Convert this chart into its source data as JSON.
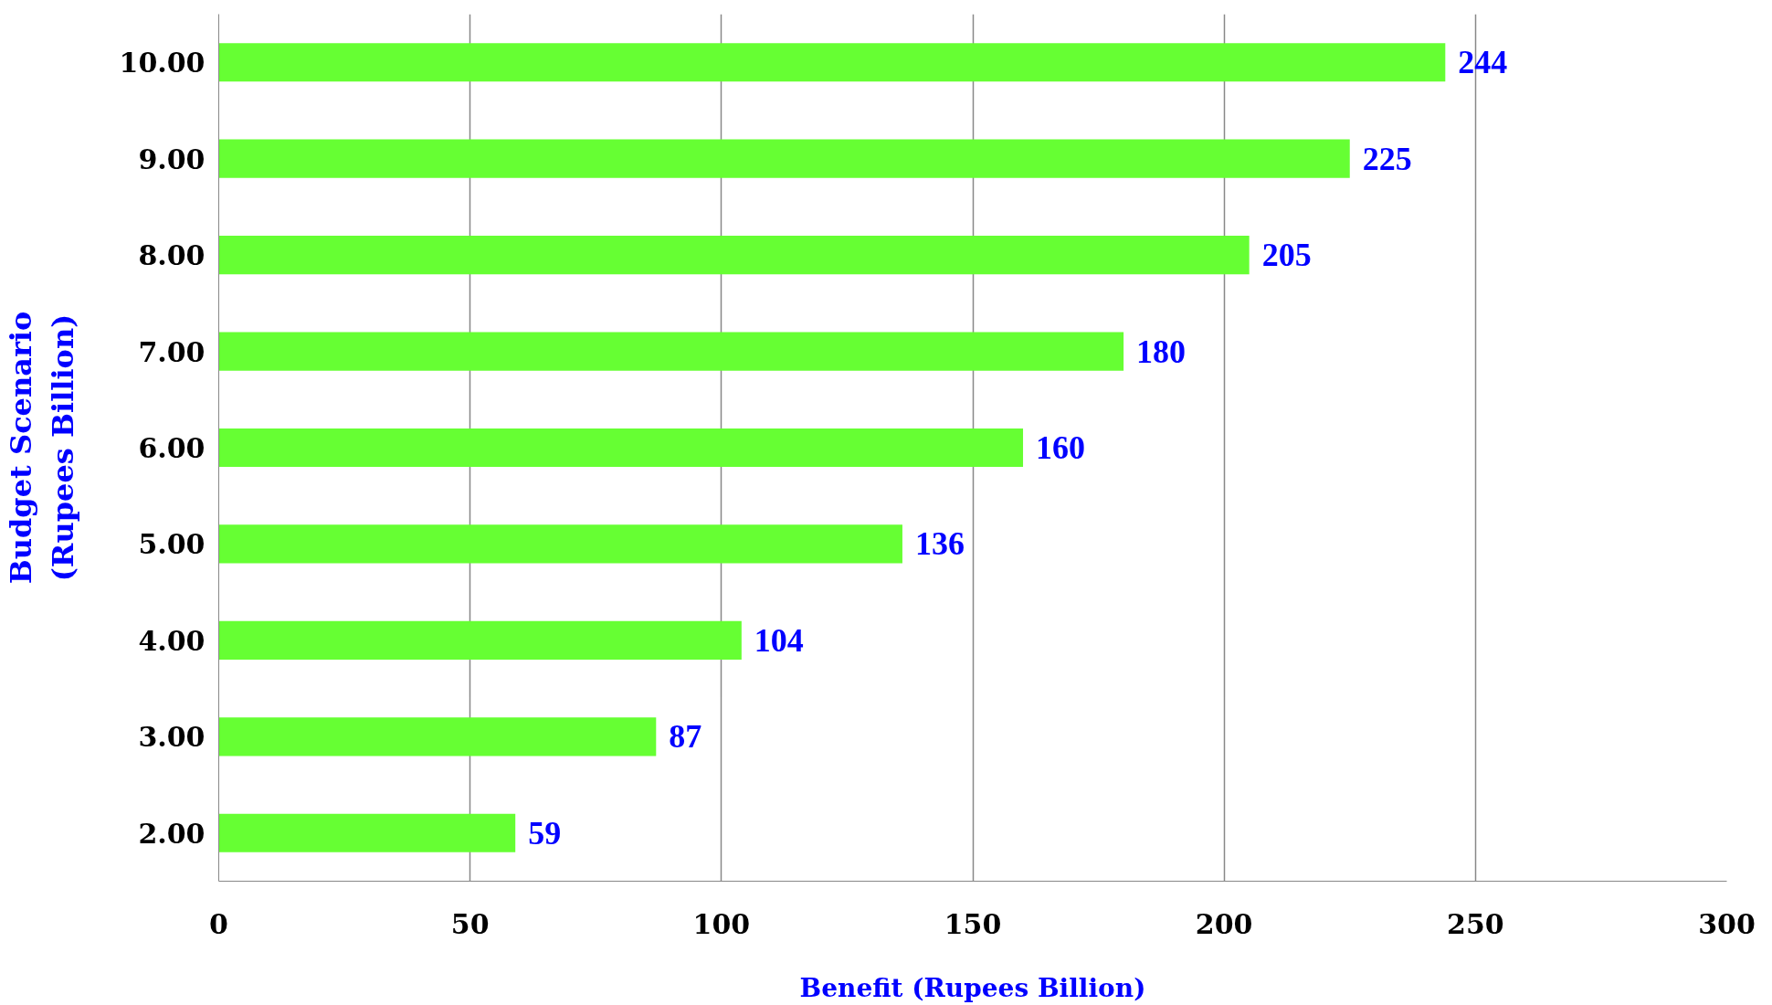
{
  "chart_data": {
    "type": "bar",
    "orientation": "horizontal",
    "xlabel": "Benefit (Rupees Billion)",
    "ylabel": "Budget Scenario\n(Rupees Billion)",
    "categories": [
      "10.00",
      "9.00",
      "8.00",
      "7.00",
      "6.00",
      "5.00",
      "4.00",
      "3.00",
      "2.00"
    ],
    "values": [
      244,
      225,
      205,
      180,
      160,
      136,
      104,
      87,
      59
    ],
    "color": "#66ff33",
    "xlim": [
      0,
      300
    ],
    "xticks": [
      0,
      50,
      100,
      150,
      200,
      250,
      300
    ],
    "grid": "x",
    "data_labels": true
  }
}
